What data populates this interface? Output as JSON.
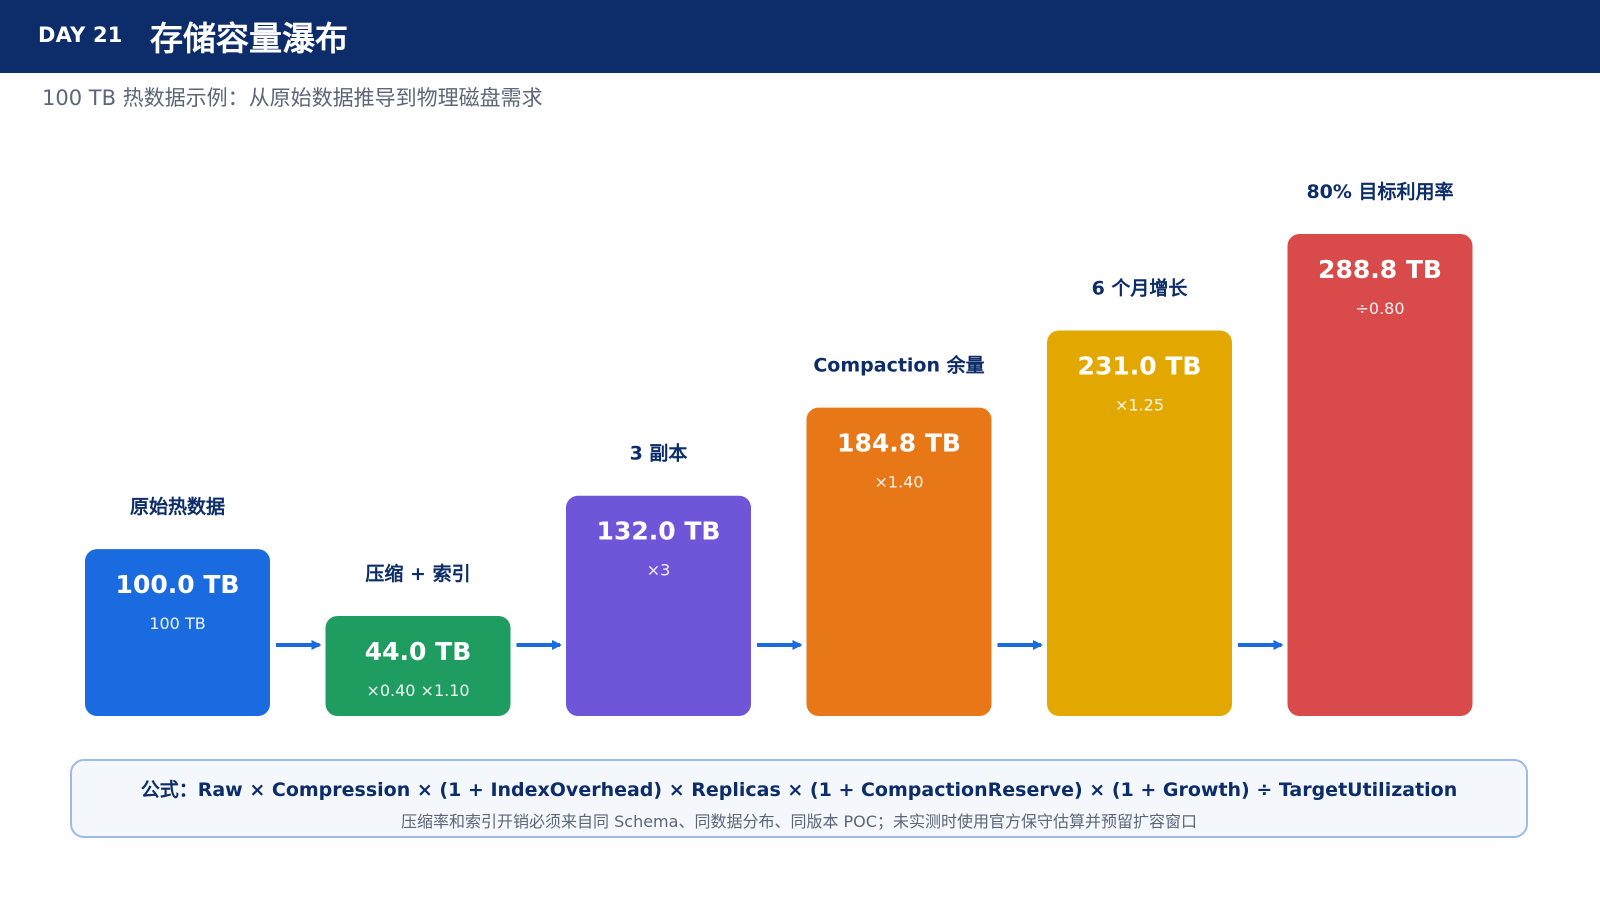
{
  "header": {
    "day": "DAY 21",
    "title": "存储容量瀑布"
  },
  "subtitle": "100 TB 热数据示例：从原始数据推导到物理磁盘需求",
  "chart_data": {
    "type": "bar",
    "categories": [
      "原始热数据",
      "压缩 + 索引",
      "3 副本",
      "Compaction 余量",
      "6 个月增长",
      "80% 目标利用率"
    ],
    "values": [
      100.0,
      44.0,
      132.0,
      184.8,
      231.0,
      288.8
    ],
    "value_labels": [
      "100.0 TB",
      "44.0 TB",
      "132.0 TB",
      "184.8 TB",
      "231.0 TB",
      "288.8 TB"
    ],
    "factor_labels": [
      "100 TB",
      "×0.40 ×1.10",
      "×3",
      "×1.40",
      "×1.25",
      "÷0.80"
    ],
    "colors": [
      "#1a6ae0",
      "#1f9c60",
      "#6f56d9",
      "#e87718",
      "#e3a800",
      "#d94b4b"
    ],
    "connector": "arrow",
    "connector_color": "#1a6ae0",
    "grid": false,
    "legend": "none",
    "ylim": [
      0,
      288.8
    ]
  },
  "formula": {
    "main": "公式：Raw × Compression × (1 + IndexOverhead) × Replicas × (1 + CompactionReserve) × (1 + Growth) ÷ TargetUtilization",
    "note": "压缩率和索引开销必须来自同 Schema、同数据分布、同版本 POC；未实测时使用官方保守估算并预留扩容窗口"
  }
}
